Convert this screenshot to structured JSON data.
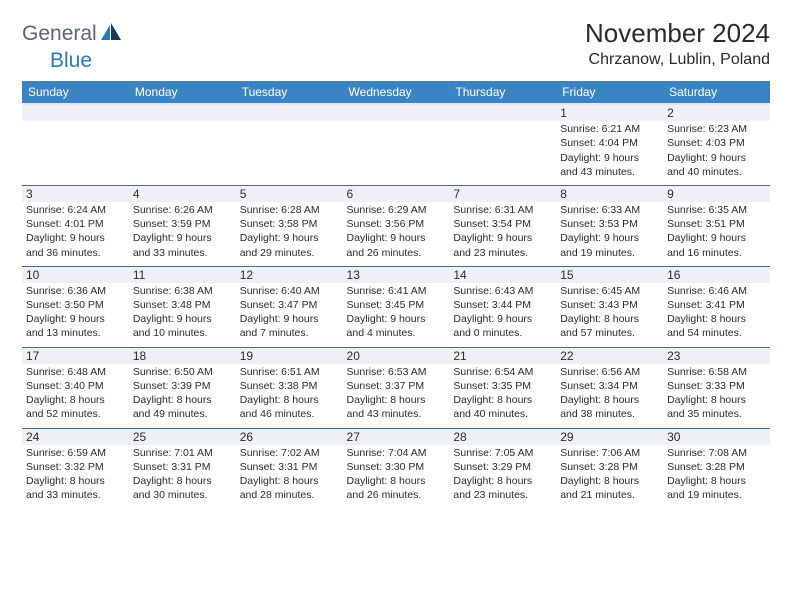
{
  "logo": {
    "word1": "General",
    "word2": "Blue"
  },
  "title": "November 2024",
  "location": "Chrzanow, Lublin, Poland",
  "header_bg": "#3b84c4",
  "header_fg": "#ffffff",
  "daynum_bg": "#eef1f3",
  "row_border": "#4a6a88",
  "days": [
    "Sunday",
    "Monday",
    "Tuesday",
    "Wednesday",
    "Thursday",
    "Friday",
    "Saturday"
  ],
  "weeks": [
    [
      null,
      null,
      null,
      null,
      null,
      {
        "n": "1",
        "sr": "6:21 AM",
        "ss": "4:04 PM",
        "dl1": "Daylight: 9 hours",
        "dl2": "and 43 minutes."
      },
      {
        "n": "2",
        "sr": "6:23 AM",
        "ss": "4:03 PM",
        "dl1": "Daylight: 9 hours",
        "dl2": "and 40 minutes."
      }
    ],
    [
      {
        "n": "3",
        "sr": "6:24 AM",
        "ss": "4:01 PM",
        "dl1": "Daylight: 9 hours",
        "dl2": "and 36 minutes."
      },
      {
        "n": "4",
        "sr": "6:26 AM",
        "ss": "3:59 PM",
        "dl1": "Daylight: 9 hours",
        "dl2": "and 33 minutes."
      },
      {
        "n": "5",
        "sr": "6:28 AM",
        "ss": "3:58 PM",
        "dl1": "Daylight: 9 hours",
        "dl2": "and 29 minutes."
      },
      {
        "n": "6",
        "sr": "6:29 AM",
        "ss": "3:56 PM",
        "dl1": "Daylight: 9 hours",
        "dl2": "and 26 minutes."
      },
      {
        "n": "7",
        "sr": "6:31 AM",
        "ss": "3:54 PM",
        "dl1": "Daylight: 9 hours",
        "dl2": "and 23 minutes."
      },
      {
        "n": "8",
        "sr": "6:33 AM",
        "ss": "3:53 PM",
        "dl1": "Daylight: 9 hours",
        "dl2": "and 19 minutes."
      },
      {
        "n": "9",
        "sr": "6:35 AM",
        "ss": "3:51 PM",
        "dl1": "Daylight: 9 hours",
        "dl2": "and 16 minutes."
      }
    ],
    [
      {
        "n": "10",
        "sr": "6:36 AM",
        "ss": "3:50 PM",
        "dl1": "Daylight: 9 hours",
        "dl2": "and 13 minutes."
      },
      {
        "n": "11",
        "sr": "6:38 AM",
        "ss": "3:48 PM",
        "dl1": "Daylight: 9 hours",
        "dl2": "and 10 minutes."
      },
      {
        "n": "12",
        "sr": "6:40 AM",
        "ss": "3:47 PM",
        "dl1": "Daylight: 9 hours",
        "dl2": "and 7 minutes."
      },
      {
        "n": "13",
        "sr": "6:41 AM",
        "ss": "3:45 PM",
        "dl1": "Daylight: 9 hours",
        "dl2": "and 4 minutes."
      },
      {
        "n": "14",
        "sr": "6:43 AM",
        "ss": "3:44 PM",
        "dl1": "Daylight: 9 hours",
        "dl2": "and 0 minutes."
      },
      {
        "n": "15",
        "sr": "6:45 AM",
        "ss": "3:43 PM",
        "dl1": "Daylight: 8 hours",
        "dl2": "and 57 minutes."
      },
      {
        "n": "16",
        "sr": "6:46 AM",
        "ss": "3:41 PM",
        "dl1": "Daylight: 8 hours",
        "dl2": "and 54 minutes."
      }
    ],
    [
      {
        "n": "17",
        "sr": "6:48 AM",
        "ss": "3:40 PM",
        "dl1": "Daylight: 8 hours",
        "dl2": "and 52 minutes."
      },
      {
        "n": "18",
        "sr": "6:50 AM",
        "ss": "3:39 PM",
        "dl1": "Daylight: 8 hours",
        "dl2": "and 49 minutes."
      },
      {
        "n": "19",
        "sr": "6:51 AM",
        "ss": "3:38 PM",
        "dl1": "Daylight: 8 hours",
        "dl2": "and 46 minutes."
      },
      {
        "n": "20",
        "sr": "6:53 AM",
        "ss": "3:37 PM",
        "dl1": "Daylight: 8 hours",
        "dl2": "and 43 minutes."
      },
      {
        "n": "21",
        "sr": "6:54 AM",
        "ss": "3:35 PM",
        "dl1": "Daylight: 8 hours",
        "dl2": "and 40 minutes."
      },
      {
        "n": "22",
        "sr": "6:56 AM",
        "ss": "3:34 PM",
        "dl1": "Daylight: 8 hours",
        "dl2": "and 38 minutes."
      },
      {
        "n": "23",
        "sr": "6:58 AM",
        "ss": "3:33 PM",
        "dl1": "Daylight: 8 hours",
        "dl2": "and 35 minutes."
      }
    ],
    [
      {
        "n": "24",
        "sr": "6:59 AM",
        "ss": "3:32 PM",
        "dl1": "Daylight: 8 hours",
        "dl2": "and 33 minutes."
      },
      {
        "n": "25",
        "sr": "7:01 AM",
        "ss": "3:31 PM",
        "dl1": "Daylight: 8 hours",
        "dl2": "and 30 minutes."
      },
      {
        "n": "26",
        "sr": "7:02 AM",
        "ss": "3:31 PM",
        "dl1": "Daylight: 8 hours",
        "dl2": "and 28 minutes."
      },
      {
        "n": "27",
        "sr": "7:04 AM",
        "ss": "3:30 PM",
        "dl1": "Daylight: 8 hours",
        "dl2": "and 26 minutes."
      },
      {
        "n": "28",
        "sr": "7:05 AM",
        "ss": "3:29 PM",
        "dl1": "Daylight: 8 hours",
        "dl2": "and 23 minutes."
      },
      {
        "n": "29",
        "sr": "7:06 AM",
        "ss": "3:28 PM",
        "dl1": "Daylight: 8 hours",
        "dl2": "and 21 minutes."
      },
      {
        "n": "30",
        "sr": "7:08 AM",
        "ss": "3:28 PM",
        "dl1": "Daylight: 8 hours",
        "dl2": "and 19 minutes."
      }
    ]
  ],
  "labels": {
    "sunrise": "Sunrise: ",
    "sunset": "Sunset: "
  }
}
